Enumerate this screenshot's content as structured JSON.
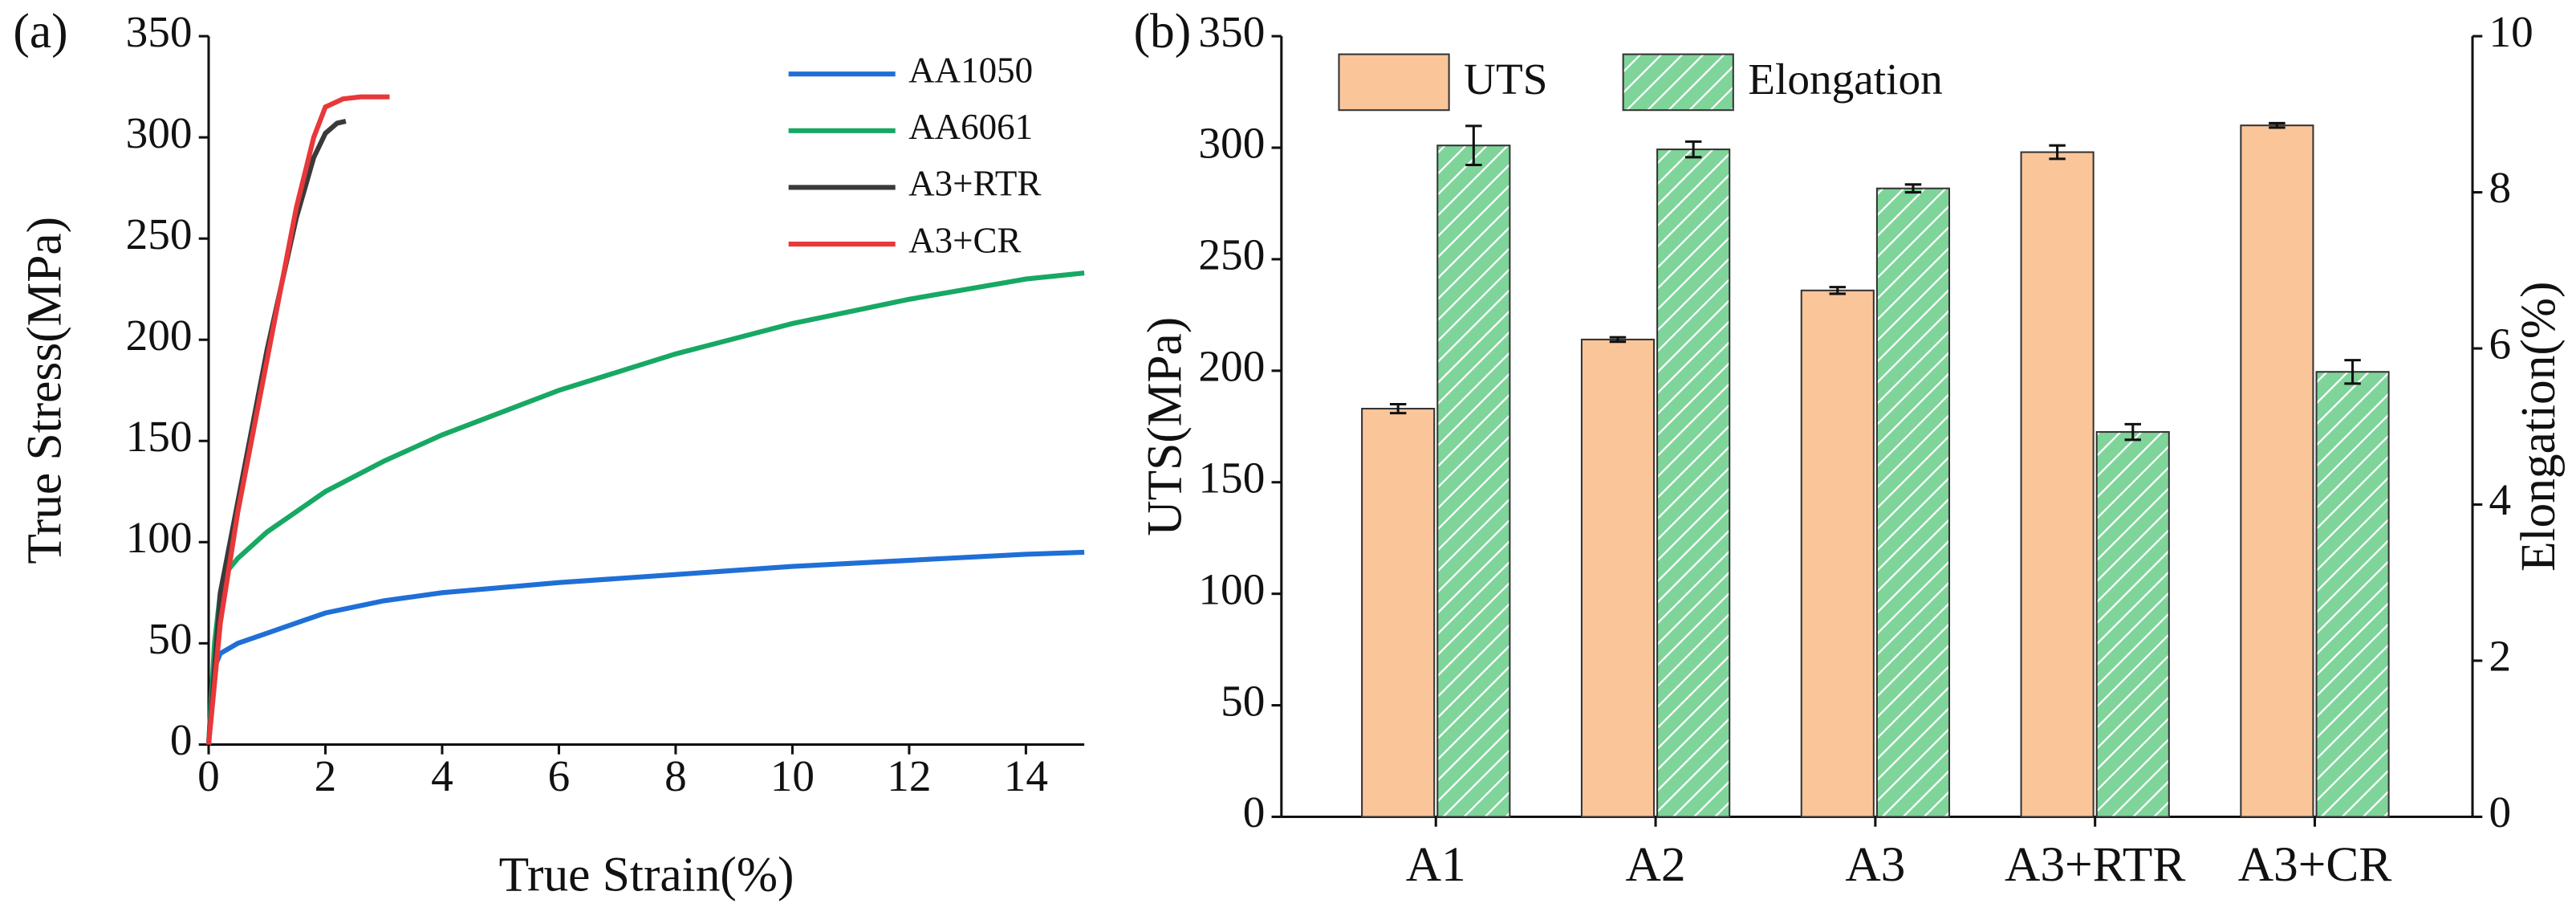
{
  "chart_data": [
    {
      "type": "line",
      "label": "(a)",
      "x_label": "True Strain(%)",
      "y_label": "True Stress(MPa)",
      "xlim": [
        0,
        15
      ],
      "xticks": [
        0,
        2,
        4,
        6,
        8,
        10,
        12,
        14
      ],
      "ylim": [
        0,
        350
      ],
      "yticks": [
        0,
        50,
        100,
        150,
        200,
        250,
        300,
        350
      ],
      "legend": "upper right",
      "series": [
        {
          "name": "AA1050",
          "color": "#1f6fd6",
          "x": [
            0,
            0.05,
            0.1,
            0.2,
            0.5,
            1,
            2,
            3,
            4,
            6,
            8,
            10,
            12,
            14,
            15
          ],
          "values": [
            0,
            25,
            38,
            45,
            50,
            55,
            65,
            71,
            75,
            80,
            84,
            88,
            91,
            94,
            95
          ]
        },
        {
          "name": "AA6061",
          "color": "#17a863",
          "x": [
            0,
            0.1,
            0.2,
            0.3,
            0.5,
            1,
            2,
            3,
            4,
            6,
            8,
            10,
            12,
            14,
            15
          ],
          "values": [
            0,
            50,
            75,
            85,
            92,
            105,
            125,
            140,
            153,
            175,
            193,
            208,
            220,
            230,
            233
          ]
        },
        {
          "name": "A3+RTR",
          "color": "#3a3a3a",
          "x": [
            0,
            0.2,
            0.5,
            1,
            1.5,
            1.8,
            2,
            2.2,
            2.35
          ],
          "values": [
            0,
            75,
            120,
            195,
            260,
            290,
            302,
            307,
            308
          ]
        },
        {
          "name": "A3+CR",
          "color": "#e8383a",
          "x": [
            0,
            0.2,
            0.5,
            1,
            1.5,
            1.8,
            2,
            2.3,
            2.6,
            3.1
          ],
          "values": [
            0,
            60,
            115,
            190,
            265,
            300,
            315,
            319,
            320,
            320
          ]
        }
      ]
    },
    {
      "type": "bar",
      "label": "(b)",
      "y_label": "UTS(MPa)",
      "y2_label": "Elongation(%)",
      "categories": [
        "A1",
        "A2",
        "A3",
        "A3+RTR",
        "A3+CR"
      ],
      "ylim": [
        0,
        350
      ],
      "yticks": [
        0,
        50,
        100,
        150,
        200,
        250,
        300,
        350
      ],
      "y2lim": [
        0,
        10
      ],
      "y2ticks": [
        0,
        2,
        4,
        6,
        8,
        10
      ],
      "legend": "upper left",
      "series": [
        {
          "name": "UTS",
          "color": "#fbc59a",
          "values": [
            183,
            214,
            236,
            298,
            310
          ],
          "errors": [
            2,
            1,
            1.5,
            3,
            1
          ]
        },
        {
          "name": "Elongation",
          "color": "#7fd49a",
          "axis": "y2",
          "hatch": true,
          "values": [
            8.6,
            8.55,
            8.05,
            4.93,
            5.7
          ],
          "errors": [
            0.25,
            0.1,
            0.05,
            0.1,
            0.15
          ]
        }
      ]
    }
  ]
}
